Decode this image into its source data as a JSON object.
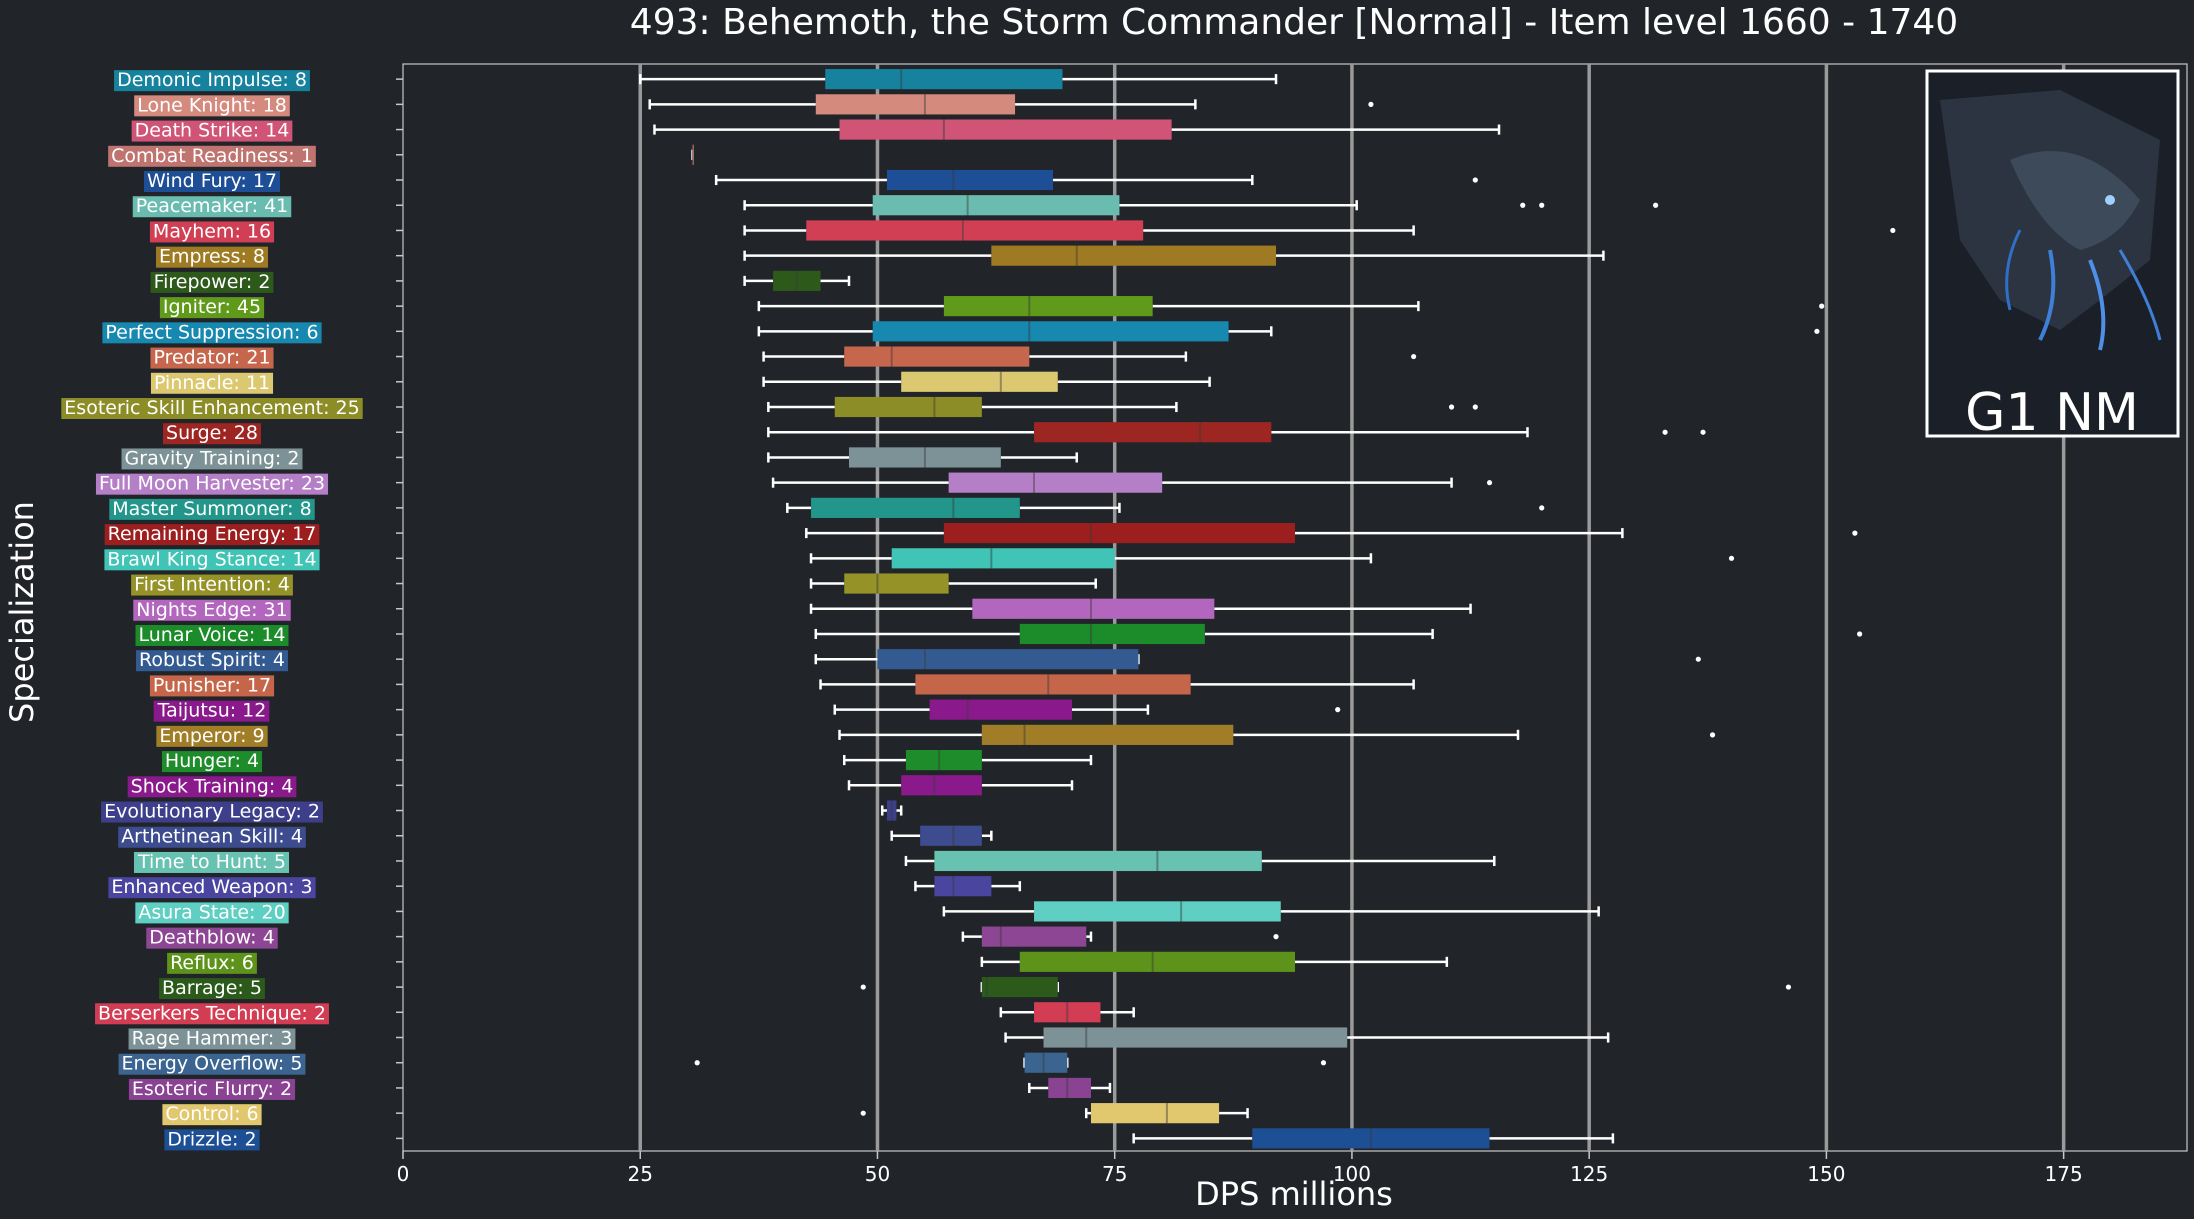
{
  "chart_data": {
    "type": "box",
    "title": "493: Behemoth, the Storm Commander [Normal] - Item level 1660 - 1740",
    "xlabel": "DPS millions",
    "ylabel": "Specialization",
    "xlim": [
      0,
      188
    ],
    "xticks": [
      0,
      25,
      50,
      75,
      100,
      125,
      150,
      175
    ],
    "grid": "vertical",
    "badge": "G1 NM",
    "series": [
      {
        "label": "Demonic Impulse: 8",
        "color": "#16829e",
        "min": 25,
        "q1": 44.5,
        "median": 52.5,
        "q3": 69.5,
        "max": 92,
        "outliers": []
      },
      {
        "label": "Lone Knight: 18",
        "color": "#d58a7e",
        "min": 26,
        "q1": 43.5,
        "median": 55,
        "q3": 64.5,
        "max": 83.5,
        "outliers": [
          102
        ]
      },
      {
        "label": "Death Strike: 14",
        "color": "#d05476",
        "min": 26.5,
        "q1": 46,
        "median": 57,
        "q3": 81,
        "max": 115.5,
        "outliers": []
      },
      {
        "label": "Combat Readiness: 1",
        "color": "#c07470",
        "min": 30.5,
        "q1": 30.5,
        "median": 30.5,
        "q3": 30.5,
        "max": 30.5,
        "outliers": []
      },
      {
        "label": "Wind Fury: 17",
        "color": "#1e4f96",
        "min": 33,
        "q1": 51,
        "median": 58,
        "q3": 68.5,
        "max": 89.5,
        "outliers": [
          113
        ]
      },
      {
        "label": "Peacemaker: 41",
        "color": "#6bbcb0",
        "min": 36,
        "q1": 49.5,
        "median": 59.5,
        "q3": 75.5,
        "max": 100.5,
        "outliers": [
          118,
          120,
          132
        ]
      },
      {
        "label": "Mayhem: 16",
        "color": "#d13f55",
        "min": 36,
        "q1": 42.5,
        "median": 59,
        "q3": 78,
        "max": 106.5,
        "outliers": [
          157
        ]
      },
      {
        "label": "Empress: 8",
        "color": "#9e7b22",
        "min": 36,
        "q1": 62,
        "median": 71,
        "q3": 92,
        "max": 126.5,
        "outliers": []
      },
      {
        "label": "Firepower: 2",
        "color": "#2d5a1b",
        "min": 36,
        "q1": 39,
        "median": 41.5,
        "q3": 44,
        "max": 47,
        "outliers": []
      },
      {
        "label": "Igniter: 45",
        "color": "#5f9a1a",
        "min": 37.5,
        "q1": 57,
        "median": 66,
        "q3": 79,
        "max": 107,
        "outliers": [
          149.5
        ]
      },
      {
        "label": "Perfect Suppression: 6",
        "color": "#1788b0",
        "min": 37.5,
        "q1": 49.5,
        "median": 66,
        "q3": 87,
        "max": 91.5,
        "outliers": [
          149
        ]
      },
      {
        "label": "Predator: 21",
        "color": "#c6674d",
        "min": 38,
        "q1": 46.5,
        "median": 51.5,
        "q3": 66,
        "max": 82.5,
        "outliers": [
          106.5
        ]
      },
      {
        "label": "Pinnacle: 11",
        "color": "#ddc872",
        "min": 38,
        "q1": 52.5,
        "median": 63,
        "q3": 69,
        "max": 85,
        "outliers": []
      },
      {
        "label": "Esoteric Skill Enhancement: 25",
        "color": "#8c8d26",
        "min": 38.5,
        "q1": 45.5,
        "median": 56,
        "q3": 61,
        "max": 81.5,
        "outliers": [
          110.5,
          113
        ]
      },
      {
        "label": "Surge: 28",
        "color": "#9e2622",
        "min": 38.5,
        "q1": 66.5,
        "median": 84,
        "q3": 91.5,
        "max": 118.5,
        "outliers": [
          133,
          137
        ]
      },
      {
        "label": "Gravity Training: 2",
        "color": "#7c9297",
        "min": 38.5,
        "q1": 47,
        "median": 55,
        "q3": 63,
        "max": 71,
        "outliers": []
      },
      {
        "label": "Full Moon Harvester: 23",
        "color": "#b57fc7",
        "min": 39,
        "q1": 57.5,
        "median": 66.5,
        "q3": 80,
        "max": 110.5,
        "outliers": [
          114.5
        ]
      },
      {
        "label": "Master Summoner: 8",
        "color": "#22968a",
        "min": 40.5,
        "q1": 43,
        "median": 58,
        "q3": 65,
        "max": 75.5,
        "outliers": [
          120
        ]
      },
      {
        "label": "Remaining Energy: 17",
        "color": "#9c1e1e",
        "min": 42.5,
        "q1": 57,
        "median": 72.5,
        "q3": 94,
        "max": 128.5,
        "outliers": [
          153
        ]
      },
      {
        "label": "Brawl King Stance: 14",
        "color": "#3fc4b6",
        "min": 43,
        "q1": 51.5,
        "median": 62,
        "q3": 75,
        "max": 102,
        "outliers": [
          140
        ]
      },
      {
        "label": "First Intention: 4",
        "color": "#959227",
        "min": 43,
        "q1": 46.5,
        "median": 50,
        "q3": 57.5,
        "max": 73,
        "outliers": []
      },
      {
        "label": "Nights Edge: 31",
        "color": "#b366bd",
        "min": 43,
        "q1": 60,
        "median": 72.5,
        "q3": 85.5,
        "max": 112.5,
        "outliers": []
      },
      {
        "label": "Lunar Voice: 14",
        "color": "#1c8c2b",
        "min": 43.5,
        "q1": 65,
        "median": 72.5,
        "q3": 84.5,
        "max": 108.5,
        "outliers": [
          153.5
        ]
      },
      {
        "label": "Robust Spirit: 4",
        "color": "#345b91",
        "min": 43.5,
        "q1": 50,
        "median": 55,
        "q3": 77.5,
        "max": 77.5,
        "outliers": [
          136.5
        ]
      },
      {
        "label": "Punisher: 17",
        "color": "#c5664a",
        "min": 44,
        "q1": 54,
        "median": 68,
        "q3": 83,
        "max": 106.5,
        "outliers": []
      },
      {
        "label": "Taijutsu: 12",
        "color": "#8a1a8c",
        "min": 45.5,
        "q1": 55.5,
        "median": 59.5,
        "q3": 70.5,
        "max": 78.5,
        "outliers": [
          98.5
        ]
      },
      {
        "label": "Emperor: 9",
        "color": "#a07d26",
        "min": 46,
        "q1": 61,
        "median": 65.5,
        "q3": 87.5,
        "max": 117.5,
        "outliers": [
          138
        ]
      },
      {
        "label": "Hunger: 4",
        "color": "#1e8c2a",
        "min": 46.5,
        "q1": 53,
        "median": 56.5,
        "q3": 61,
        "max": 72.5,
        "outliers": []
      },
      {
        "label": "Shock Training: 4",
        "color": "#8a1a8c",
        "min": 47,
        "q1": 52.5,
        "median": 56,
        "q3": 61,
        "max": 70.5,
        "outliers": []
      },
      {
        "label": "Evolutionary Legacy: 2",
        "color": "#3d3f8a",
        "min": 50.5,
        "q1": 51,
        "median": 51.5,
        "q3": 52,
        "max": 52.5,
        "outliers": []
      },
      {
        "label": "Arthetinean Skill: 4",
        "color": "#3d4c8e",
        "min": 51.5,
        "q1": 54.5,
        "median": 58,
        "q3": 61,
        "max": 62,
        "outliers": []
      },
      {
        "label": "Time to Hunt: 5",
        "color": "#68c2b2",
        "min": 53,
        "q1": 56,
        "median": 79.5,
        "q3": 90.5,
        "max": 115,
        "outliers": []
      },
      {
        "label": "Enhanced Weapon: 3",
        "color": "#4a46a0",
        "min": 54,
        "q1": 56,
        "median": 58,
        "q3": 62,
        "max": 65,
        "outliers": []
      },
      {
        "label": "Asura State: 20",
        "color": "#5ecfc2",
        "min": 57,
        "q1": 66.5,
        "median": 82,
        "q3": 92.5,
        "max": 126,
        "outliers": []
      },
      {
        "label": "Deathblow: 4",
        "color": "#8c4693",
        "min": 59,
        "q1": 61,
        "median": 63,
        "q3": 72,
        "max": 72.5,
        "outliers": [
          92
        ]
      },
      {
        "label": "Reflux: 6",
        "color": "#5d921b",
        "min": 61,
        "q1": 65,
        "median": 79,
        "q3": 94,
        "max": 110,
        "outliers": []
      },
      {
        "label": "Barrage: 5",
        "color": "#2b5a1a",
        "min": 61,
        "q1": 61,
        "median": 61.5,
        "q3": 69,
        "max": 69,
        "outliers": [
          48.5,
          146
        ]
      },
      {
        "label": "Berserkers Technique: 2",
        "color": "#d23d54",
        "min": 63,
        "q1": 66.5,
        "median": 70,
        "q3": 73.5,
        "max": 77,
        "outliers": []
      },
      {
        "label": "Rage Hammer: 3",
        "color": "#7d9296",
        "min": 63.5,
        "q1": 67.5,
        "median": 72,
        "q3": 99.5,
        "max": 127,
        "outliers": []
      },
      {
        "label": "Energy Overflow: 5",
        "color": "#3c6490",
        "min": 65.5,
        "q1": 65.5,
        "median": 67.5,
        "q3": 70,
        "max": 70,
        "outliers": [
          31,
          97
        ]
      },
      {
        "label": "Esoteric Flurry: 2",
        "color": "#8a4393",
        "min": 66,
        "q1": 68,
        "median": 70,
        "q3": 72.5,
        "max": 74.5,
        "outliers": []
      },
      {
        "label": "Control: 6",
        "color": "#e1c76e",
        "min": 72,
        "q1": 72.5,
        "median": 80.5,
        "q3": 86,
        "max": 89,
        "outliers": [
          48.5
        ]
      },
      {
        "label": "Drizzle: 2",
        "color": "#1c4f94",
        "min": 77,
        "q1": 89.5,
        "median": 102,
        "q3": 114.5,
        "max": 127.5,
        "outliers": []
      }
    ]
  }
}
